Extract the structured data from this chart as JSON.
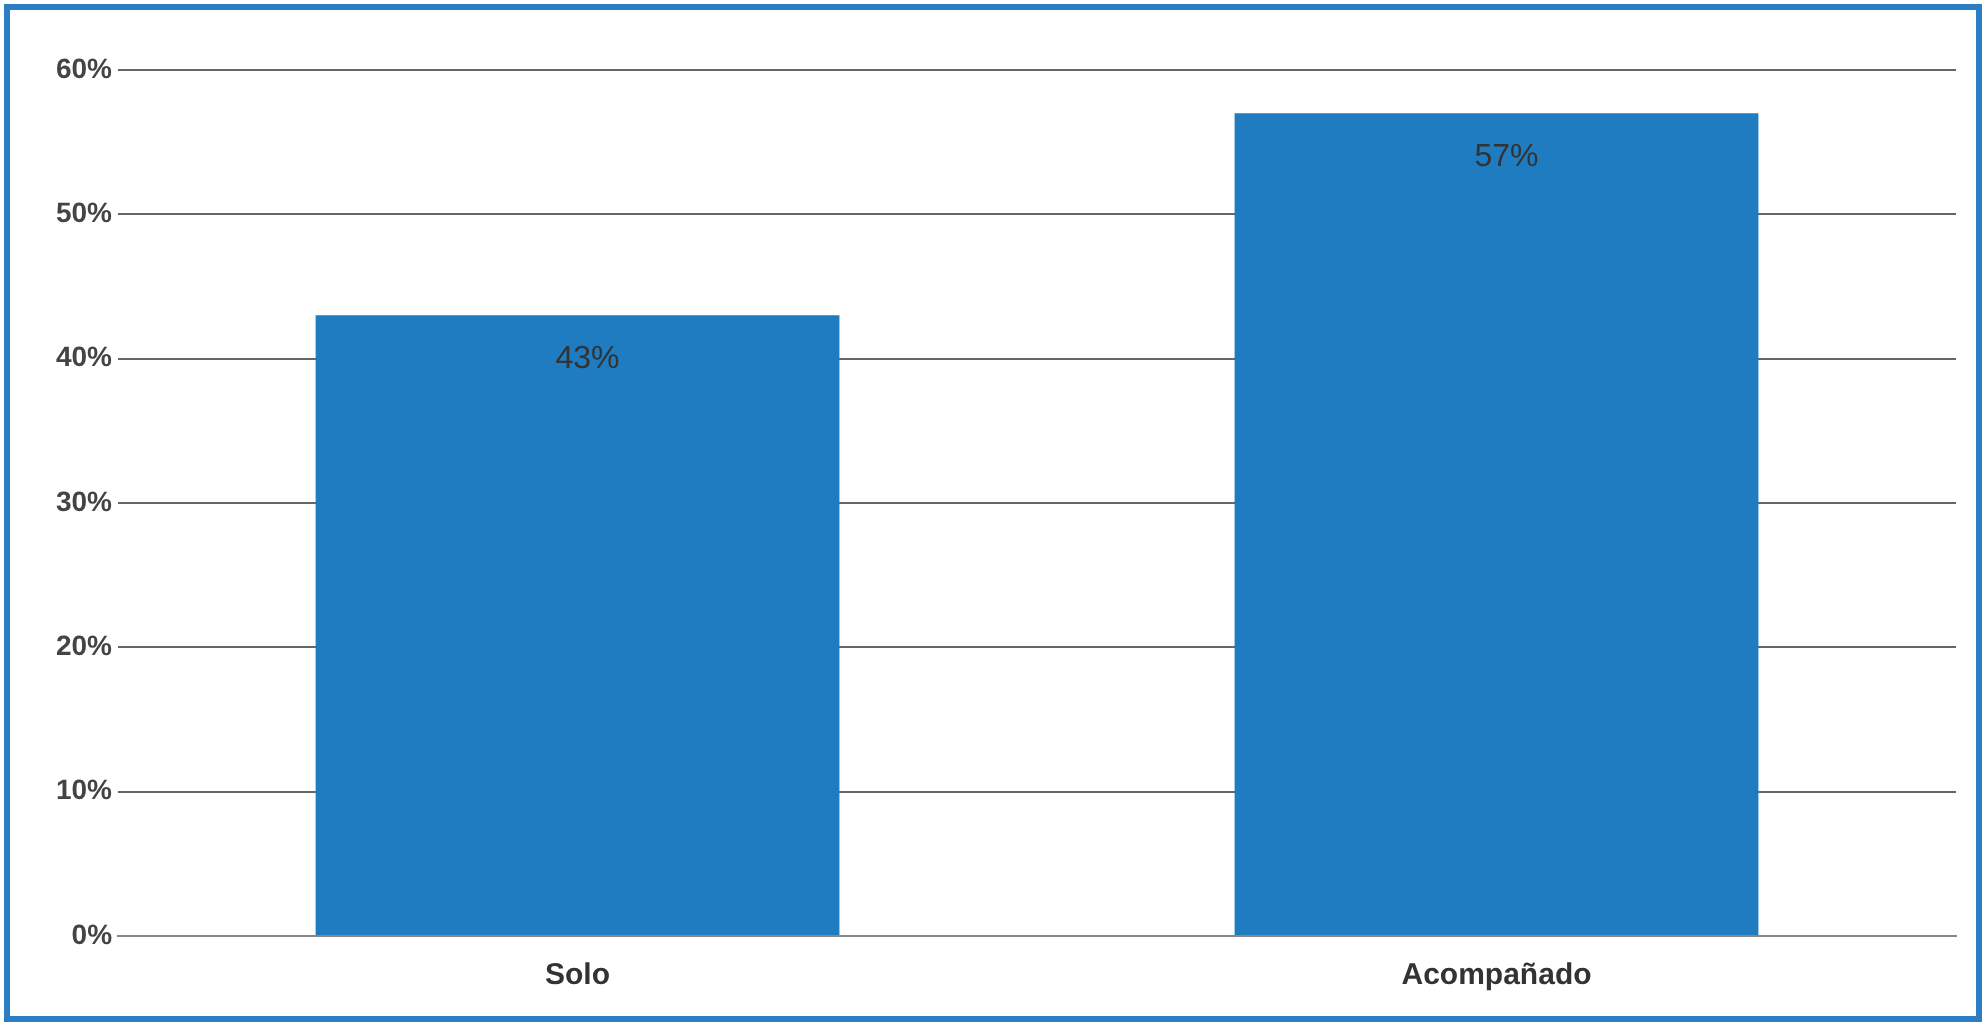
{
  "chart_data": {
    "type": "bar",
    "categories": [
      "Solo",
      "Acompañado"
    ],
    "values": [
      43,
      57
    ],
    "color": "#1f7cc0",
    "value_labels": [
      "43%",
      "57%"
    ],
    "ylim": [
      0,
      60
    ],
    "yticks": [
      {
        "value": 0,
        "label": "0%"
      },
      {
        "value": 10,
        "label": "10%"
      },
      {
        "value": 20,
        "label": "20%"
      },
      {
        "value": 30,
        "label": "30%"
      },
      {
        "value": 40,
        "label": "40%"
      },
      {
        "value": 50,
        "label": "50%"
      },
      {
        "value": 60,
        "label": "60%"
      }
    ],
    "grid": "y"
  }
}
